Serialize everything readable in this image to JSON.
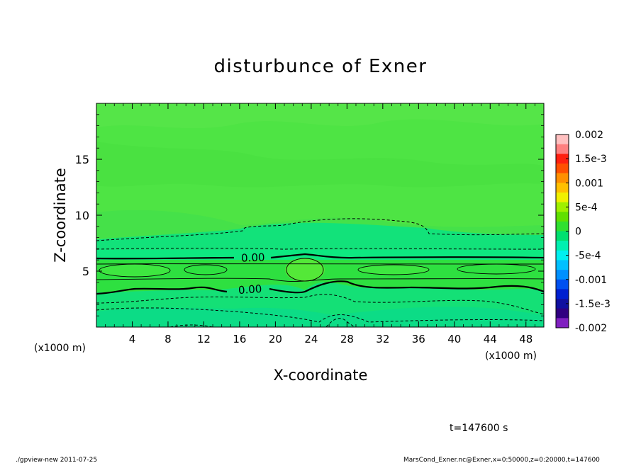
{
  "chart_data": {
    "type": "heatmap",
    "title": "disturbunce of Exner",
    "xlabel": "X-coordinate",
    "ylabel": "Z-coordinate",
    "x_unit": "(x1000 m)",
    "x_unit_right": "(x1000 m)",
    "xlim": [
      0,
      50
    ],
    "ylim": [
      0,
      20
    ],
    "x_ticks": [
      4,
      8,
      12,
      16,
      20,
      24,
      28,
      32,
      36,
      40,
      44,
      48
    ],
    "y_ticks": [
      5,
      10,
      15
    ],
    "colorbar": {
      "labels": [
        "0.002",
        "1.5e-3",
        "0.001",
        "5e-4",
        "0",
        "-5e-4",
        "-0.001",
        "-1.5e-3",
        "-0.002"
      ],
      "levels": [
        0.002,
        0.0015,
        0.001,
        0.0005,
        0,
        -0.0005,
        -0.001,
        -0.0015,
        -0.002
      ],
      "colors_top_to_bottom": [
        "#ffc0c0",
        "#ff8080",
        "#ff2010",
        "#ff5000",
        "#ff9000",
        "#ffc000",
        "#f0f000",
        "#a0f000",
        "#60e000",
        "#30e030",
        "#00e070",
        "#00f0b0",
        "#00f0f0",
        "#00c0ff",
        "#0090ff",
        "#0050f0",
        "#0020d0",
        "#1010a0",
        "#300080",
        "#8020c0"
      ]
    },
    "contour_labels": [
      {
        "text": "0.00",
        "x": 17.5,
        "z": 6.2
      },
      {
        "text": "0.00",
        "x": 17.5,
        "z": 3.3
      }
    ],
    "time_label": "t=147600 s"
  },
  "footer": {
    "left": "./gpview-new   2011-07-25",
    "right": "MarsCond_Exner.nc@Exner,x=0:50000,z=0:20000,t=147600"
  }
}
